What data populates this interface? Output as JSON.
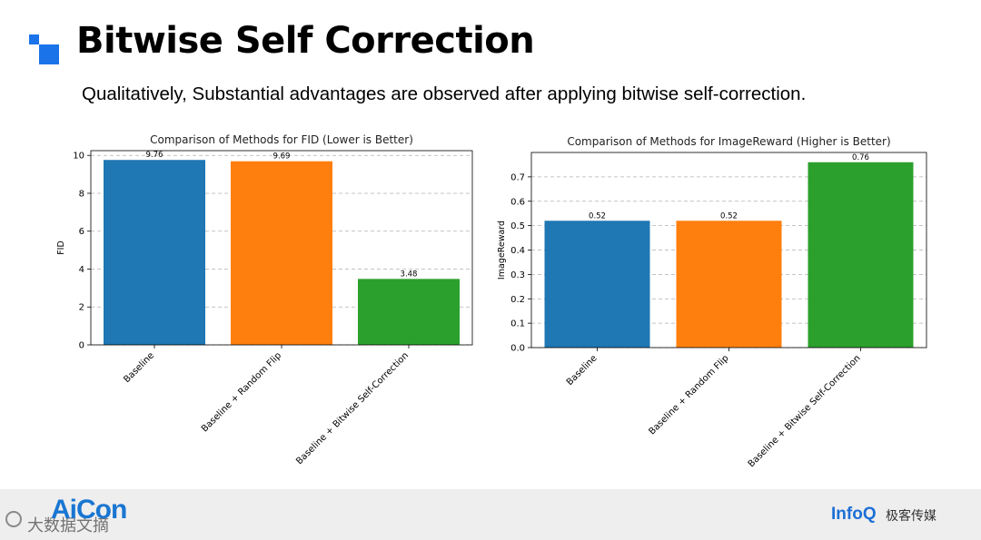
{
  "slide": {
    "title": "Bitwise Self Correction",
    "subtitle": "Qualitatively, Substantial advantages are observed after applying bitwise self-correction.",
    "accent_color": "#1a73e8"
  },
  "footer": {
    "brand": "AiCon",
    "watermark": "大数据文摘",
    "infoq": "InfoQ",
    "media": "极客传媒",
    "background": "#eeeeee"
  },
  "chart_data": [
    {
      "type": "bar",
      "title": "Comparison of Methods for FID (Lower is Better)",
      "xlabel": "",
      "ylabel": "FID",
      "categories": [
        "Baseline",
        "Baseline + Random Flip",
        "Baseline + Bitwise Self-Correction"
      ],
      "values": [
        9.76,
        9.69,
        3.48
      ],
      "value_labels": [
        "9.76",
        "9.69",
        "3.48"
      ],
      "colors": [
        "#1f77b4",
        "#ff7f0e",
        "#2ca02c"
      ],
      "ylim": [
        0,
        10.25
      ],
      "yticks": [
        0,
        2,
        4,
        6,
        8,
        10
      ],
      "ytick_labels": [
        "0",
        "2",
        "4",
        "6",
        "8",
        "10"
      ],
      "grid": "y-dashed",
      "legend": "none"
    },
    {
      "type": "bar",
      "title": "Comparison of Methods for ImageReward (Higher is Better)",
      "xlabel": "",
      "ylabel": "ImageReward",
      "categories": [
        "Baseline",
        "Baseline + Random Flip",
        "Baseline + Bitwise Self-Correction"
      ],
      "values": [
        0.52,
        0.52,
        0.76
      ],
      "value_labels": [
        "0.52",
        "0.52",
        "0.76"
      ],
      "colors": [
        "#1f77b4",
        "#ff7f0e",
        "#2ca02c"
      ],
      "ylim": [
        0,
        0.8
      ],
      "yticks": [
        0.0,
        0.1,
        0.2,
        0.3,
        0.4,
        0.5,
        0.6,
        0.7
      ],
      "ytick_labels": [
        "0.0",
        "0.1",
        "0.2",
        "0.3",
        "0.4",
        "0.5",
        "0.6",
        "0.7"
      ],
      "grid": "y-dashed",
      "legend": "none"
    }
  ]
}
